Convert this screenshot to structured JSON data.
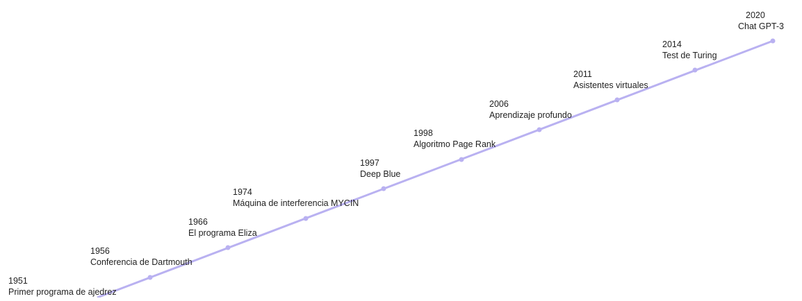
{
  "events": [
    {
      "year": "1951",
      "label": "Primer programa de ajedrez"
    },
    {
      "year": "1956",
      "label": "Conferencia de Dartmouth"
    },
    {
      "year": "1966",
      "label": "El programa Eliza"
    },
    {
      "year": "1974",
      "label": "Máquina de interferencia MYCIN"
    },
    {
      "year": "1997",
      "label": "Deep Blue"
    },
    {
      "year": "1998",
      "label": "Algoritmo Page Rank"
    },
    {
      "year": "2006",
      "label": "Aprendizaje profundo"
    },
    {
      "year": "2011",
      "label": "Asistentes virtuales"
    },
    {
      "year": "2014",
      "label": "Test de Turing"
    },
    {
      "year": "2020",
      "label": "Chat GPT-3"
    }
  ]
}
